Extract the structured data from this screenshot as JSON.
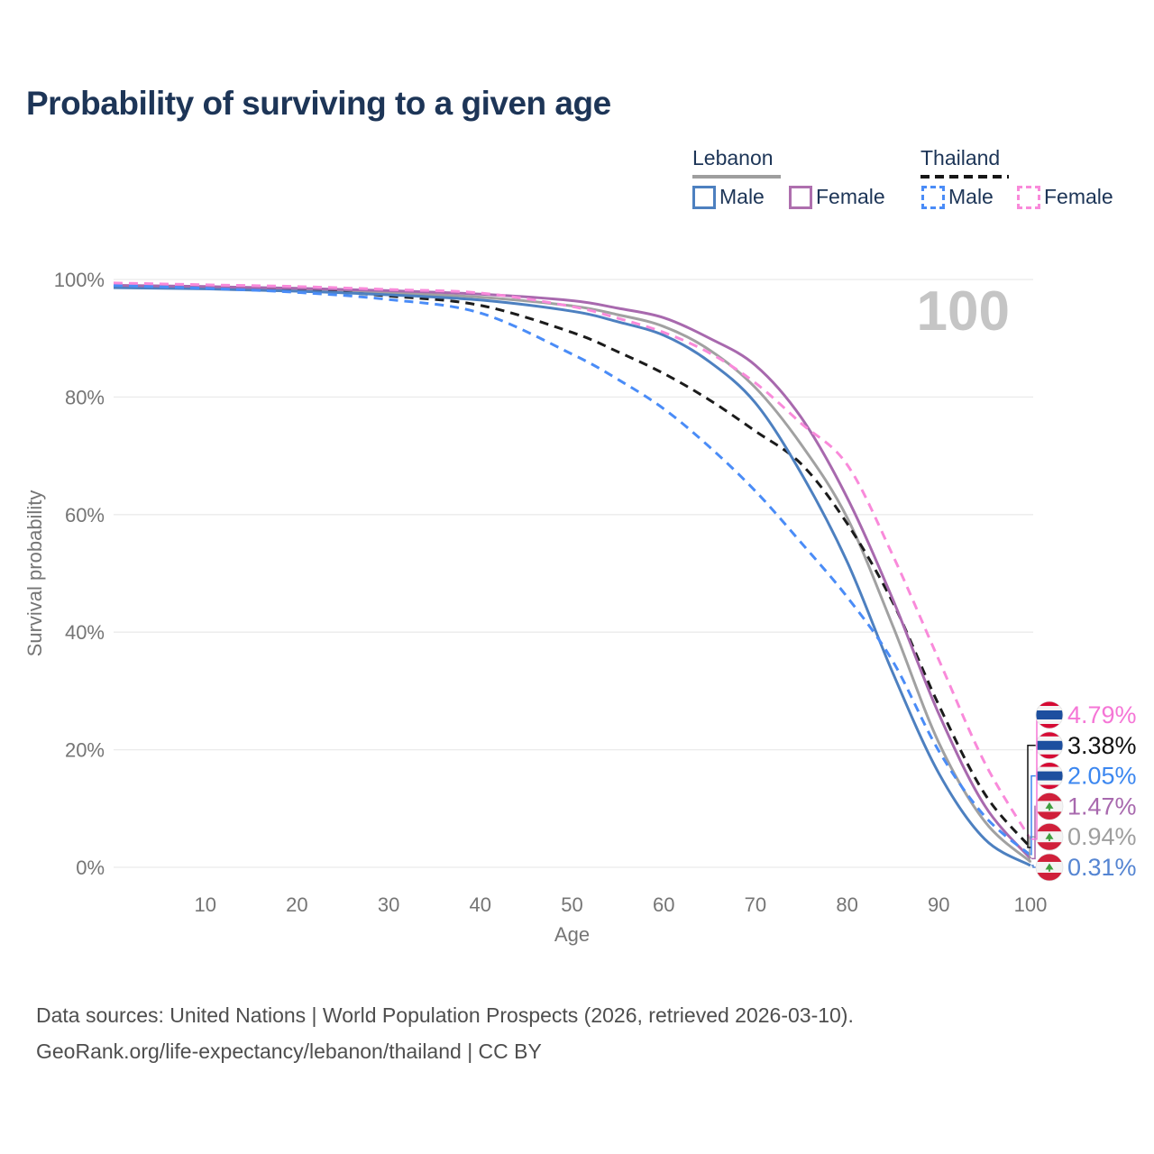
{
  "app": {
    "title": "Probability of surviving to a given age"
  },
  "legend": {
    "groups": [
      {
        "label": "Lebanon",
        "line_style": "solid",
        "line_color": "#9e9e9e",
        "items": [
          {
            "label": "Male",
            "color": "#4d80c0",
            "style": "solid"
          },
          {
            "label": "Female",
            "color": "#ae6fae",
            "style": "solid"
          }
        ]
      },
      {
        "label": "Thailand",
        "line_style": "dashed",
        "line_color": "#161616",
        "items": [
          {
            "label": "Male",
            "color": "#4a8cf7",
            "style": "dashed"
          },
          {
            "label": "Female",
            "color": "#f98ada",
            "style": "dashed"
          }
        ]
      }
    ]
  },
  "chart_data": {
    "type": "line",
    "title": "Probability of surviving to a given age",
    "xlabel": "Age",
    "ylabel": "Survival probability",
    "xlim": [
      0,
      100
    ],
    "ylim": [
      0,
      100
    ],
    "grid": true,
    "watermark": "100",
    "x_ticks": [
      10,
      20,
      30,
      40,
      50,
      60,
      70,
      80,
      90,
      100
    ],
    "y_ticks": [
      {
        "value": 0,
        "label": "0%"
      },
      {
        "value": 20,
        "label": "20%"
      },
      {
        "value": 40,
        "label": "40%"
      },
      {
        "value": 60,
        "label": "60%"
      },
      {
        "value": 80,
        "label": "80%"
      },
      {
        "value": 100,
        "label": "100%"
      }
    ],
    "x": [
      0,
      10,
      20,
      30,
      40,
      50,
      55,
      60,
      65,
      70,
      75,
      80,
      85,
      90,
      95,
      100
    ],
    "series": [
      {
        "name": "Lebanon",
        "country": "Lebanon",
        "sex": "Both",
        "color": "#a1a1a1",
        "dash": false,
        "width": 3,
        "flag": "LB",
        "row": 4,
        "end_label": "0.94%",
        "end_label_color": "#9e9e9e",
        "values": [
          98.8,
          98.6,
          98.2,
          97.7,
          97.0,
          95.5,
          94.0,
          92.0,
          88.0,
          81.6,
          71.9,
          59.5,
          41.0,
          21.2,
          7.8,
          0.94
        ]
      },
      {
        "name": "Thailand",
        "country": "Thailand",
        "sex": "Both",
        "color": "#1b1b1b",
        "dash": true,
        "width": 3,
        "flag": "TH",
        "row": 1,
        "end_label": "3.38%",
        "end_label_color": "#111111",
        "values": [
          99.1,
          98.7,
          98.3,
          97.2,
          95.6,
          91.0,
          87.7,
          84.0,
          79.5,
          74.2,
          68.6,
          58.5,
          45.0,
          27.6,
          12.5,
          3.38
        ]
      },
      {
        "name": "Lebanon Male",
        "country": "Lebanon",
        "sex": "Male",
        "color": "#4d80c0",
        "dash": false,
        "width": 3,
        "flag": "LB",
        "row": 5,
        "end_label": "0.31%",
        "end_label_color": "#5585d2",
        "values": [
          98.6,
          98.4,
          98.0,
          97.4,
          96.5,
          94.6,
          92.8,
          90.5,
          86.0,
          79.0,
          67.0,
          52.0,
          33.0,
          16.0,
          4.8,
          0.31
        ]
      },
      {
        "name": "Lebanon Female",
        "country": "Lebanon",
        "sex": "Female",
        "color": "#a869ae",
        "dash": false,
        "width": 3,
        "flag": "LB",
        "row": 3,
        "end_label": "1.47%",
        "end_label_color": "#a869ae",
        "values": [
          99.0,
          98.8,
          98.5,
          98.1,
          97.5,
          96.4,
          95.1,
          93.5,
          90.0,
          85.4,
          76.5,
          62.9,
          45.5,
          26.1,
          10.5,
          1.47
        ]
      },
      {
        "name": "Thailand Male",
        "country": "Thailand",
        "sex": "Male",
        "color": "#4a8cf7",
        "dash": true,
        "width": 3,
        "flag": "TH",
        "row": 2,
        "end_label": "2.05%",
        "end_label_color": "#3c87f0",
        "values": [
          99.0,
          98.5,
          97.8,
          96.6,
          94.3,
          87.3,
          83.0,
          78.0,
          71.5,
          64.0,
          55.2,
          46.0,
          35.0,
          19.8,
          8.7,
          2.05
        ]
      },
      {
        "name": "Thailand Female",
        "country": "Thailand",
        "sex": "Female",
        "color": "#f98ada",
        "dash": true,
        "width": 3,
        "flag": "TH",
        "row": 0,
        "end_label": "4.79%",
        "end_label_color": "#f576d6",
        "values": [
          99.4,
          99.1,
          98.8,
          98.3,
          97.7,
          95.4,
          93.4,
          91.0,
          87.5,
          82.4,
          75.5,
          68.5,
          53.0,
          35.3,
          17.8,
          4.79
        ]
      }
    ],
    "flags": {
      "TH": {
        "red": "#d50a33",
        "white": "#f4f4f4",
        "blue": "#1d4f9f"
      },
      "LB": {
        "red": "#d0203b",
        "white": "#f4f4f4",
        "green": "#3f9e3f"
      }
    },
    "colors": {
      "axis_text": "#757575",
      "gridline": "#ebebeb",
      "watermark": "#c5c5c5"
    }
  },
  "footer": {
    "line1": "Data sources: United Nations | World Population Prospects (2026, retrieved 2026-03-10).",
    "line2": "GeoRank.org/life-expectancy/lebanon/thailand | CC BY"
  }
}
